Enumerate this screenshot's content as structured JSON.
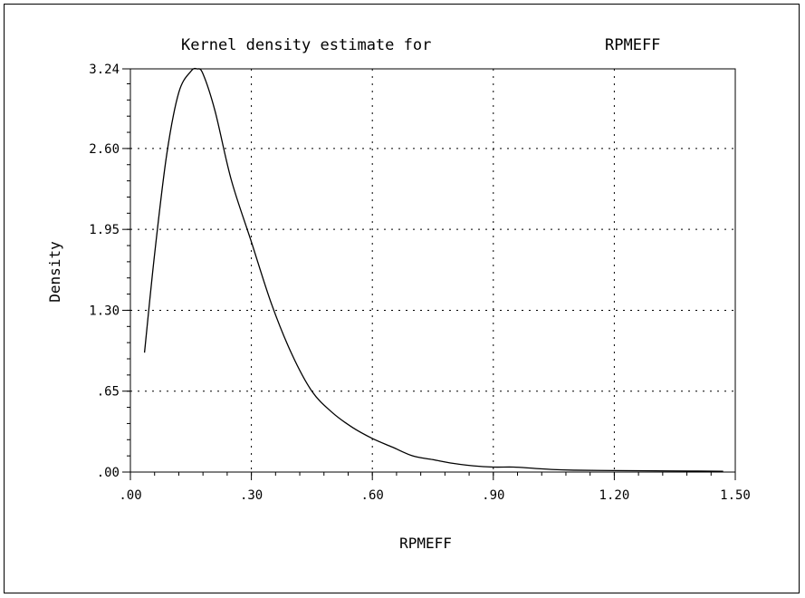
{
  "chart_data": {
    "type": "line",
    "title_left": "Kernel density estimate for",
    "title_right": "RPMEFF",
    "xlabel": "RPMEFF",
    "ylabel": "Density",
    "xlim": [
      0.0,
      1.5
    ],
    "ylim": [
      0.0,
      3.24
    ],
    "xticks": [
      0.0,
      0.3,
      0.6,
      0.9,
      1.2,
      1.5
    ],
    "xtick_labels": [
      ".00",
      ".30",
      ".60",
      ".90",
      "1.20",
      "1.50"
    ],
    "yticks": [
      0.0,
      0.65,
      1.3,
      1.95,
      2.6,
      3.24
    ],
    "ytick_labels": [
      ".00",
      ".65",
      "1.30",
      "1.95",
      "2.60",
      "3.24"
    ],
    "grid": true,
    "grid_style": "dotted",
    "series": [
      {
        "color": "#000000",
        "x": [
          0.035,
          0.06,
          0.09,
          0.12,
          0.15,
          0.165,
          0.18,
          0.21,
          0.25,
          0.3,
          0.35,
          0.4,
          0.45,
          0.5,
          0.55,
          0.6,
          0.65,
          0.7,
          0.75,
          0.8,
          0.85,
          0.9,
          0.95,
          1.0,
          1.05,
          1.1,
          1.2,
          1.3,
          1.4,
          1.47
        ],
        "y": [
          0.96,
          1.75,
          2.55,
          3.05,
          3.22,
          3.24,
          3.2,
          2.9,
          2.35,
          1.85,
          1.35,
          0.95,
          0.65,
          0.48,
          0.36,
          0.27,
          0.2,
          0.13,
          0.1,
          0.07,
          0.05,
          0.04,
          0.04,
          0.03,
          0.02,
          0.015,
          0.012,
          0.01,
          0.008,
          0.006
        ]
      }
    ]
  }
}
